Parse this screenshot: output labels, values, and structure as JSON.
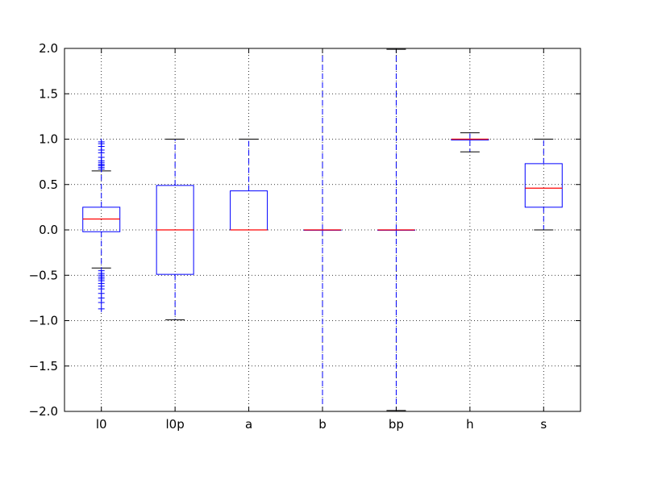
{
  "chart_data": {
    "type": "box",
    "title": "",
    "xlabel": "",
    "ylabel": "",
    "ylim": [
      -2.0,
      2.0
    ],
    "grid": true,
    "yticks": [
      2.0,
      1.5,
      1.0,
      0.5,
      0.0,
      -0.5,
      -1.0,
      -1.5,
      -2.0
    ],
    "ytick_labels": [
      "2.0",
      "1.5",
      "1.0",
      "0.5",
      "0.0",
      "−0.5",
      "−1.0",
      "−1.5",
      "−2.0"
    ],
    "categories": [
      "l0",
      "l0p",
      "a",
      "b",
      "bp",
      "h",
      "s"
    ],
    "boxes": [
      {
        "q1": -0.02,
        "median": 0.12,
        "q3": 0.25,
        "whisker_low": -0.42,
        "whisker_high": 0.65,
        "outliers": [
          0.97,
          0.95,
          0.92,
          0.88,
          0.85,
          0.8,
          0.76,
          0.74,
          0.72,
          0.71,
          0.69,
          0.67,
          -0.45,
          -0.48,
          -0.5,
          -0.52,
          -0.54,
          -0.56,
          -0.59,
          -0.62,
          -0.65,
          -0.7,
          -0.75,
          -0.8,
          -0.87
        ]
      },
      {
        "q1": -0.49,
        "median": 0.0,
        "q3": 0.49,
        "whisker_low": -0.99,
        "whisker_high": 1.0,
        "outliers": []
      },
      {
        "q1": 0.0,
        "median": 0.0,
        "q3": 0.43,
        "whisker_low": 0.0,
        "whisker_high": 1.0,
        "outliers": []
      },
      {
        "q1": 0.0,
        "median": 0.0,
        "q3": 0.0,
        "whisker_low": -2.0,
        "whisker_high": 2.0,
        "outliers": []
      },
      {
        "q1": 0.0,
        "median": 0.0,
        "q3": 0.0,
        "whisker_low": -1.99,
        "whisker_high": 1.99,
        "outliers": []
      },
      {
        "q1": 0.99,
        "median": 1.0,
        "q3": 1.0,
        "whisker_low": 0.86,
        "whisker_high": 1.07,
        "outliers": []
      },
      {
        "q1": 0.25,
        "median": 0.46,
        "q3": 0.73,
        "whisker_low": 0.0,
        "whisker_high": 1.0,
        "outliers": []
      }
    ],
    "colors": {
      "box": "#0000ff",
      "median": "#ff0000",
      "whisker": "#0000ff",
      "cap": "#000000",
      "outlier": "#0000ff",
      "grid": "#000000",
      "axes": "#000000"
    }
  }
}
